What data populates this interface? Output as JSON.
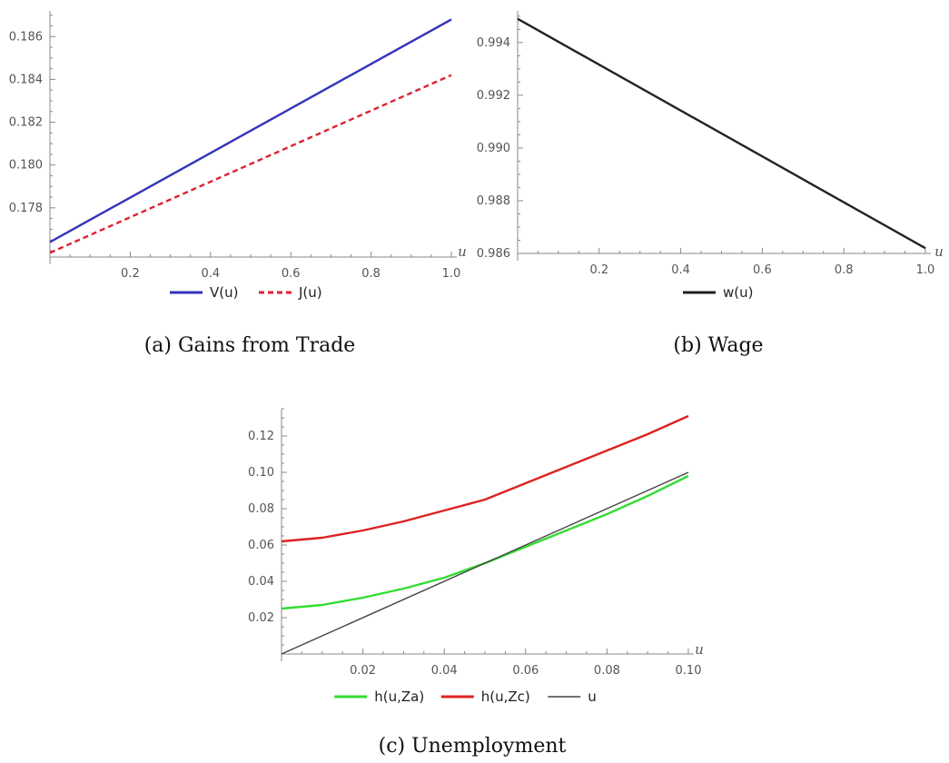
{
  "charts": [
    {
      "caption": "(a) Gains from Trade",
      "chart_data": {
        "type": "line",
        "xlabel": "u",
        "ylabel": "",
        "xlim": [
          0.0,
          1.0
        ],
        "ylim": [
          0.1757,
          0.1872
        ],
        "xticks": [
          0.2,
          0.4,
          0.6,
          0.8,
          1.0
        ],
        "xtick_labels": [
          "0.2",
          "0.4",
          "0.6",
          "0.8",
          "1.0"
        ],
        "yticks": [
          0.178,
          0.18,
          0.182,
          0.184,
          0.186
        ],
        "ytick_labels": [
          "0.178",
          "0.180",
          "0.182",
          "0.184",
          "0.186"
        ],
        "legend_position": "bottom",
        "series": [
          {
            "name": "V(u)",
            "color": "#3333bb",
            "dash": "solid",
            "x": [
              0.0,
              1.0
            ],
            "y": [
              0.1764,
              0.1868
            ]
          },
          {
            "name": "J(u)",
            "color": "#dd2233",
            "dash": "dashed",
            "x": [
              0.0,
              1.0
            ],
            "y": [
              0.1759,
              0.1842
            ]
          }
        ]
      }
    },
    {
      "caption": "(b) Wage",
      "chart_data": {
        "type": "line",
        "xlabel": "u",
        "ylabel": "",
        "xlim": [
          0.0,
          1.0
        ],
        "ylim": [
          0.986,
          0.9952
        ],
        "xticks": [
          0.2,
          0.4,
          0.6,
          0.8,
          1.0
        ],
        "xtick_labels": [
          "0.2",
          "0.4",
          "0.6",
          "0.8",
          "1.0"
        ],
        "yticks": [
          0.986,
          0.988,
          0.99,
          0.992,
          0.994
        ],
        "ytick_labels": [
          "0.986",
          "0.988",
          "0.990",
          "0.992",
          "0.994"
        ],
        "legend_position": "bottom",
        "series": [
          {
            "name": "w(u)",
            "color": "#222222",
            "dash": "solid",
            "x": [
              0.0,
              1.0
            ],
            "y": [
              0.9949,
              0.9862
            ]
          }
        ]
      }
    },
    {
      "caption": "(c) Unemployment",
      "chart_data": {
        "type": "line",
        "xlabel": "u",
        "ylabel": "",
        "xlim": [
          0.0,
          0.1
        ],
        "ylim": [
          0.0,
          0.135
        ],
        "xticks": [
          0.02,
          0.04,
          0.06,
          0.08,
          0.1
        ],
        "xtick_labels": [
          "0.02",
          "0.04",
          "0.06",
          "0.08",
          "0.10"
        ],
        "yticks": [
          0.02,
          0.04,
          0.06,
          0.08,
          0.1,
          0.12
        ],
        "ytick_labels": [
          "0.02",
          "0.04",
          "0.06",
          "0.08",
          "0.10",
          "0.12"
        ],
        "legend_position": "bottom",
        "series": [
          {
            "name": "h(u,Za)",
            "color": "#33dd33",
            "dash": "solid",
            "x": [
              0.0,
              0.01,
              0.02,
              0.03,
              0.04,
              0.05,
              0.06,
              0.07,
              0.08,
              0.09,
              0.1
            ],
            "y": [
              0.025,
              0.027,
              0.031,
              0.036,
              0.042,
              0.05,
              0.059,
              0.068,
              0.077,
              0.087,
              0.098
            ]
          },
          {
            "name": "h(u,Zc)",
            "color": "#dd2222",
            "dash": "solid",
            "x": [
              0.0,
              0.01,
              0.02,
              0.03,
              0.04,
              0.05,
              0.06,
              0.07,
              0.08,
              0.09,
              0.1
            ],
            "y": [
              0.062,
              0.064,
              0.068,
              0.073,
              0.079,
              0.085,
              0.094,
              0.103,
              0.112,
              0.121,
              0.131
            ]
          },
          {
            "name": "u",
            "color": "#444444",
            "dash": "solid",
            "x": [
              0.0,
              0.1
            ],
            "y": [
              0.0,
              0.1
            ]
          }
        ]
      }
    }
  ]
}
